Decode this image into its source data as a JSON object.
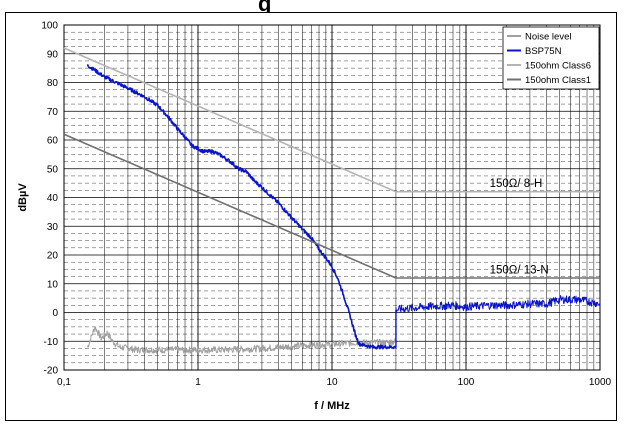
{
  "header": {
    "title_fragment": "g"
  },
  "chart_data": {
    "type": "line",
    "xlabel": "f / MHz",
    "ylabel": "dBµV",
    "xscale": "log",
    "xlim": [
      0.1,
      1000
    ],
    "ylim": [
      -20,
      100
    ],
    "x_tick_labels": [
      "0,1",
      "1",
      "10",
      "100",
      "1000"
    ],
    "y_ticks": [
      -20,
      -10,
      0,
      10,
      20,
      30,
      40,
      50,
      60,
      70,
      80,
      90,
      100
    ],
    "grid": true,
    "legend_position": "top-right",
    "annotations": [
      {
        "text": "150Ω/ 8-H",
        "x": 150,
        "y": 45
      },
      {
        "text": "150Ω/ 13-N",
        "x": 150,
        "y": 15
      }
    ],
    "series": [
      {
        "name": "Noise level",
        "color": "#a0a0a0",
        "style": "noisy",
        "points": [
          [
            0.15,
            -12
          ],
          [
            0.17,
            -5
          ],
          [
            0.19,
            -9
          ],
          [
            0.21,
            -7
          ],
          [
            0.23,
            -10
          ],
          [
            0.26,
            -12
          ],
          [
            0.35,
            -13
          ],
          [
            0.5,
            -13
          ],
          [
            0.8,
            -13
          ],
          [
            1.5,
            -13
          ],
          [
            3,
            -12.5
          ],
          [
            6,
            -11.5
          ],
          [
            10,
            -11
          ],
          [
            15,
            -10.5
          ],
          [
            20,
            -10.5
          ],
          [
            25,
            -10.5
          ],
          [
            30,
            -10
          ]
        ],
        "noise_amp": 1.2
      },
      {
        "name": "BSP75N",
        "color": "#0a14c8",
        "style": "line",
        "points": [
          [
            0.15,
            86
          ],
          [
            0.2,
            82
          ],
          [
            0.3,
            78
          ],
          [
            0.4,
            75
          ],
          [
            0.5,
            72
          ],
          [
            0.6,
            68
          ],
          [
            0.7,
            64
          ],
          [
            0.8,
            61
          ],
          [
            0.9,
            58
          ],
          [
            1.0,
            57
          ],
          [
            1.1,
            56
          ],
          [
            1.3,
            56
          ],
          [
            1.5,
            54.5
          ],
          [
            1.8,
            52
          ],
          [
            2.0,
            50
          ],
          [
            2.3,
            49
          ],
          [
            2.6,
            46
          ],
          [
            3,
            43.5
          ],
          [
            4,
            38
          ],
          [
            5,
            33
          ],
          [
            6,
            29
          ],
          [
            7,
            26
          ],
          [
            8,
            22
          ],
          [
            9,
            19
          ],
          [
            10,
            16
          ],
          [
            11,
            12
          ],
          [
            12,
            7
          ],
          [
            13,
            2
          ],
          [
            14,
            -3
          ],
          [
            15,
            -8
          ],
          [
            16,
            -11
          ],
          [
            20,
            -12
          ],
          [
            25,
            -12
          ],
          [
            30,
            -12
          ]
        ],
        "noise_amp": 0.6
      },
      {
        "name": "BSP75N",
        "color": "#0a14c8",
        "style": "noisy",
        "points": [
          [
            30,
            1
          ],
          [
            50,
            2
          ],
          [
            80,
            2.5
          ],
          [
            100,
            2
          ],
          [
            150,
            2.5
          ],
          [
            200,
            2.5
          ],
          [
            300,
            3
          ],
          [
            400,
            3
          ],
          [
            500,
            4.5
          ],
          [
            700,
            4.5
          ],
          [
            1000,
            3
          ]
        ],
        "noise_amp": 1.4
      },
      {
        "name": "150ohm Class6",
        "color": "#b4b4b4",
        "style": "line",
        "points": [
          [
            0.1,
            92
          ],
          [
            30,
            42
          ],
          [
            1000,
            42
          ]
        ]
      },
      {
        "name": "150ohm Class1",
        "color": "#707070",
        "style": "line",
        "points": [
          [
            0.1,
            62
          ],
          [
            30,
            12
          ],
          [
            1000,
            12
          ]
        ]
      }
    ],
    "legend": [
      {
        "name": "Noise level",
        "color": "#a0a0a0"
      },
      {
        "name": "BSP75N",
        "color": "#0a14c8"
      },
      {
        "name": "150ohm Class6",
        "color": "#b4b4b4"
      },
      {
        "name": "150ohm Class1",
        "color": "#707070"
      }
    ]
  }
}
